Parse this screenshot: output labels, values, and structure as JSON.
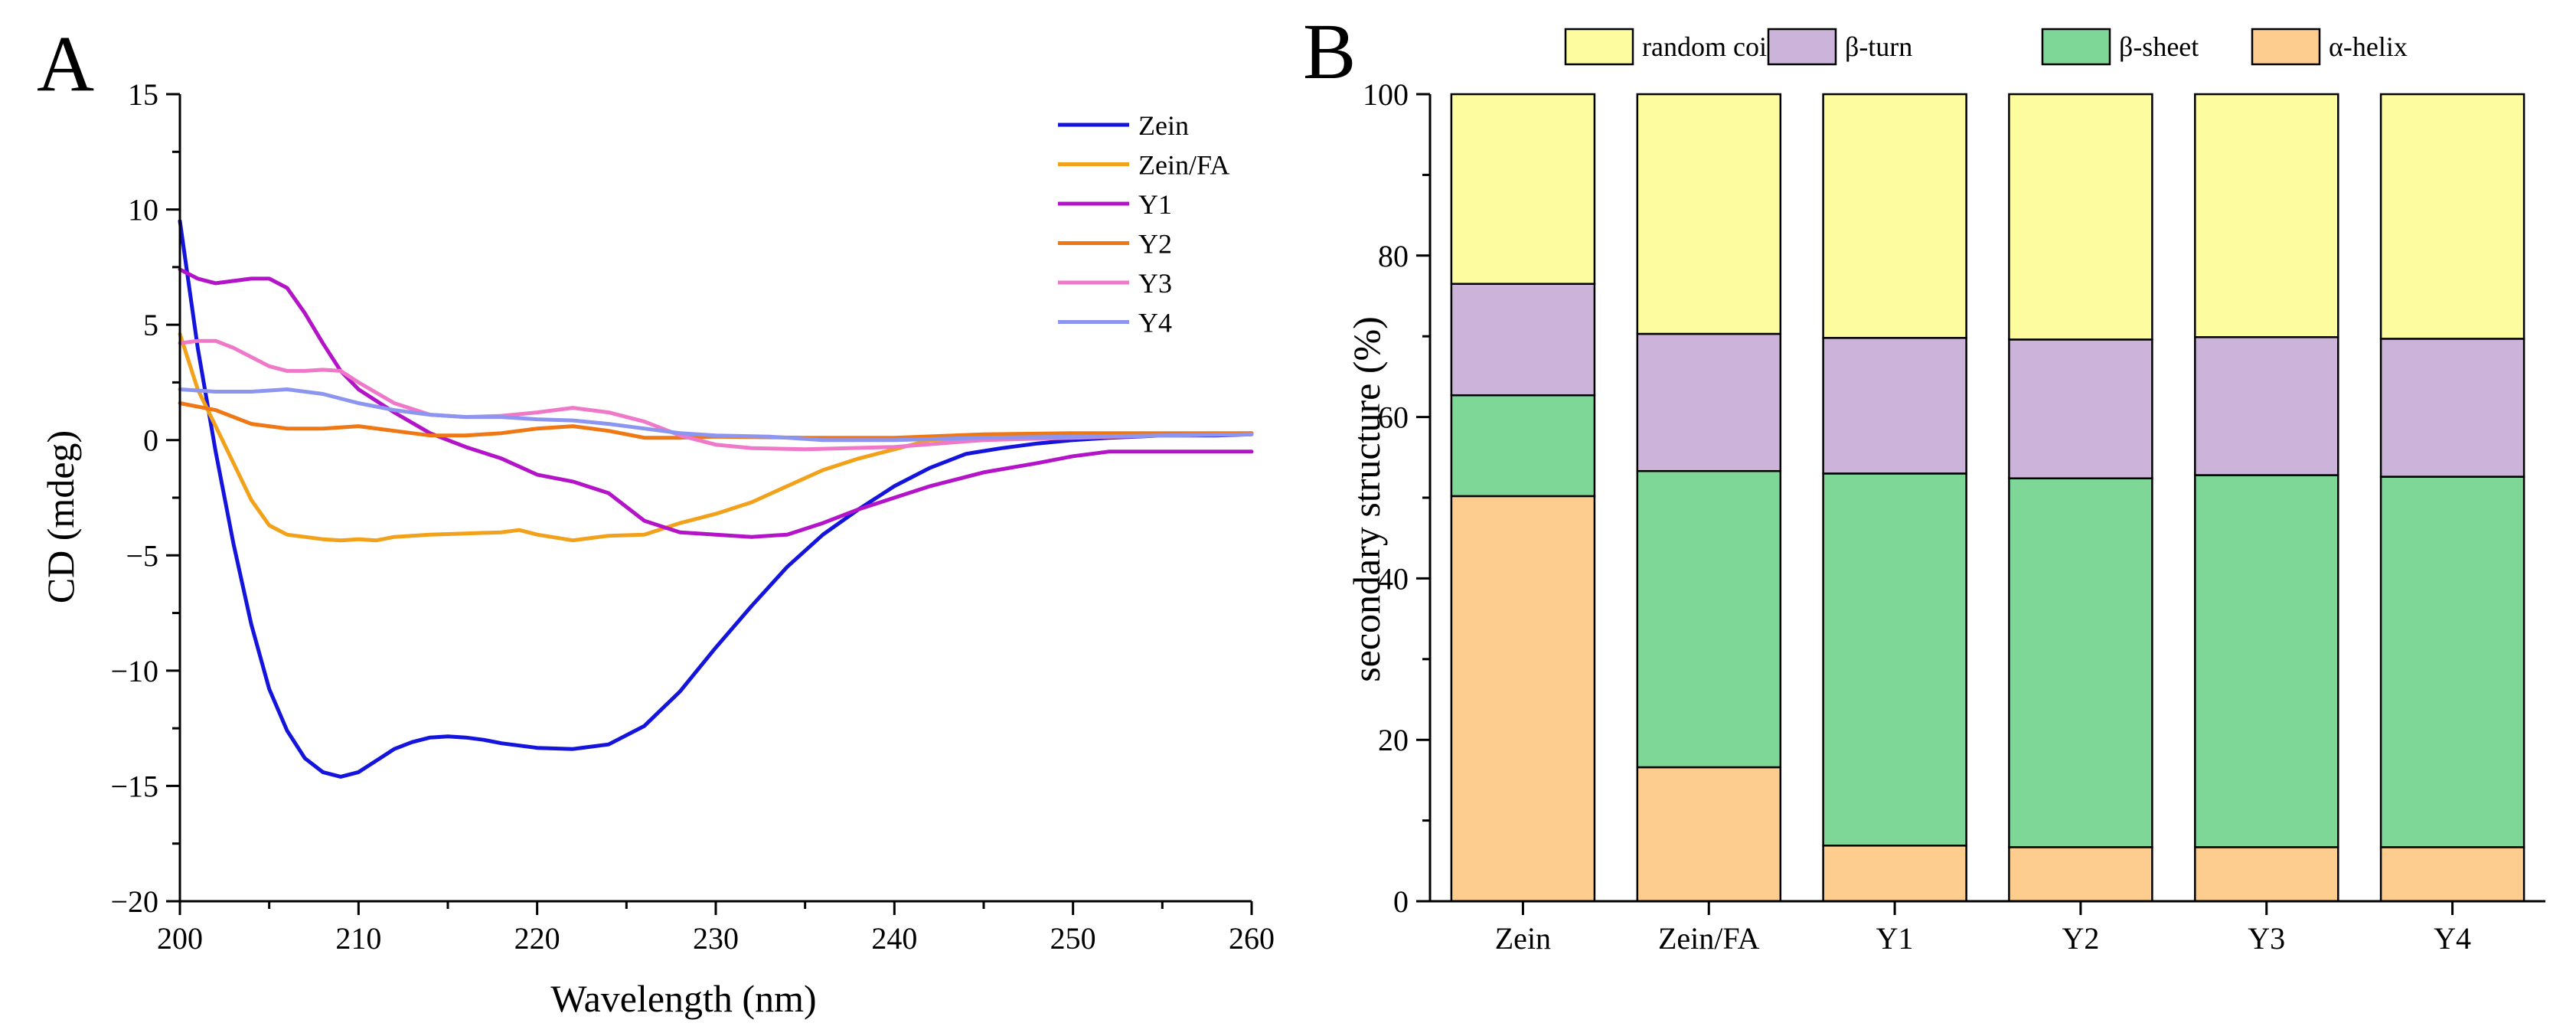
{
  "panels": {
    "a": "A",
    "b": "B"
  },
  "chart_data": [
    {
      "type": "line",
      "panel": "A",
      "title": "",
      "xlabel": "Wavelength (nm)",
      "ylabel": "CD (mdeg)",
      "xlim": [
        200,
        260
      ],
      "ylim": [
        -20,
        15
      ],
      "xticks": [
        200,
        210,
        220,
        230,
        240,
        250,
        260
      ],
      "yticks": [
        -20,
        -15,
        -10,
        -5,
        0,
        5,
        10,
        15
      ],
      "ytick_labels": [
        "−20",
        "−15",
        "−10",
        "−5",
        "0",
        "5",
        "10",
        "15"
      ],
      "grid": false,
      "legend_position": "top-right",
      "series": [
        {
          "name": "Zein",
          "color": "#1414dc",
          "x": [
            200,
            201,
            202,
            203,
            204,
            205,
            206,
            207,
            208,
            209,
            210,
            211,
            212,
            213,
            214,
            215,
            216,
            217,
            218,
            220,
            222,
            224,
            226,
            228,
            230,
            232,
            234,
            236,
            238,
            240,
            242,
            244,
            246,
            248,
            250,
            252,
            255,
            258,
            260
          ],
          "y": [
            9.5,
            4.0,
            -0.5,
            -4.5,
            -8.0,
            -10.8,
            -12.6,
            -13.8,
            -14.4,
            -14.6,
            -14.4,
            -13.9,
            -13.4,
            -13.1,
            -12.9,
            -12.85,
            -12.9,
            -13.0,
            -13.15,
            -13.35,
            -13.4,
            -13.2,
            -12.4,
            -10.9,
            -9.0,
            -7.2,
            -5.5,
            -4.1,
            -3.0,
            -2.0,
            -1.2,
            -0.6,
            -0.35,
            -0.15,
            0.0,
            0.1,
            0.2,
            0.2,
            0.25
          ]
        },
        {
          "name": "Zein/FA",
          "color": "#f2a21a",
          "x": [
            200,
            201,
            202,
            203,
            204,
            205,
            206,
            207,
            208,
            209,
            210,
            211,
            212,
            213,
            214,
            216,
            218,
            219,
            220,
            222,
            224,
            226,
            228,
            230,
            232,
            234,
            236,
            238,
            240,
            242,
            245,
            250,
            255,
            260
          ],
          "y": [
            4.6,
            2.2,
            0.6,
            -1.0,
            -2.6,
            -3.7,
            -4.1,
            -4.2,
            -4.3,
            -4.35,
            -4.3,
            -4.35,
            -4.2,
            -4.15,
            -4.1,
            -4.05,
            -4.0,
            -3.9,
            -4.1,
            -4.35,
            -4.15,
            -4.1,
            -3.6,
            -3.2,
            -2.7,
            -2.0,
            -1.3,
            -0.8,
            -0.4,
            0.0,
            0.1,
            0.2,
            0.25,
            0.3
          ]
        },
        {
          "name": "Y1",
          "color": "#b414c8",
          "x": [
            200,
            201,
            202,
            203,
            204,
            205,
            206,
            207,
            208,
            209,
            210,
            212,
            214,
            216,
            218,
            220,
            222,
            224,
            226,
            228,
            230,
            232,
            234,
            236,
            238,
            240,
            242,
            245,
            248,
            250,
            252,
            255,
            258,
            260
          ],
          "y": [
            7.4,
            7.0,
            6.8,
            6.9,
            7.0,
            7.0,
            6.6,
            5.5,
            4.2,
            3.0,
            2.2,
            1.2,
            0.3,
            -0.3,
            -0.8,
            -1.5,
            -1.8,
            -2.3,
            -3.5,
            -4.0,
            -4.1,
            -4.2,
            -4.1,
            -3.6,
            -3.0,
            -2.5,
            -2.0,
            -1.4,
            -1.0,
            -0.7,
            -0.5,
            -0.5,
            -0.5,
            -0.5
          ]
        },
        {
          "name": "Y2",
          "color": "#f07814",
          "x": [
            200,
            202,
            204,
            206,
            208,
            210,
            212,
            214,
            216,
            218,
            220,
            222,
            224,
            226,
            228,
            230,
            235,
            240,
            245,
            250,
            255,
            260
          ],
          "y": [
            1.6,
            1.3,
            0.7,
            0.5,
            0.5,
            0.6,
            0.4,
            0.2,
            0.2,
            0.3,
            0.5,
            0.6,
            0.4,
            0.1,
            0.1,
            0.15,
            0.1,
            0.1,
            0.25,
            0.3,
            0.3,
            0.3
          ]
        },
        {
          "name": "Y3",
          "color": "#f078c8",
          "x": [
            200,
            201,
            202,
            203,
            204,
            205,
            206,
            207,
            208,
            209,
            210,
            212,
            214,
            216,
            218,
            220,
            222,
            224,
            226,
            228,
            230,
            232,
            235,
            240,
            245,
            250,
            255,
            260
          ],
          "y": [
            4.2,
            4.3,
            4.3,
            4.0,
            3.6,
            3.2,
            3.0,
            3.0,
            3.05,
            3.0,
            2.5,
            1.6,
            1.1,
            1.0,
            1.05,
            1.2,
            1.4,
            1.2,
            0.8,
            0.2,
            -0.2,
            -0.35,
            -0.4,
            -0.3,
            0.0,
            0.1,
            0.2,
            0.25
          ]
        },
        {
          "name": "Y4",
          "color": "#8c96f0",
          "x": [
            200,
            202,
            204,
            206,
            208,
            210,
            212,
            214,
            216,
            218,
            220,
            222,
            224,
            226,
            228,
            230,
            233,
            236,
            240,
            245,
            250,
            255,
            260
          ],
          "y": [
            2.2,
            2.1,
            2.1,
            2.2,
            2.0,
            1.6,
            1.3,
            1.1,
            1.0,
            1.0,
            0.9,
            0.85,
            0.7,
            0.5,
            0.3,
            0.2,
            0.15,
            0.0,
            0.0,
            0.1,
            0.15,
            0.2,
            0.25
          ]
        }
      ]
    },
    {
      "type": "bar",
      "stacked": true,
      "panel": "B",
      "title": "",
      "xlabel": "",
      "ylabel": "secondary structure (%)",
      "ylim": [
        0,
        100
      ],
      "yticks": [
        0,
        20,
        40,
        60,
        80,
        100
      ],
      "grid": false,
      "legend_position": "top",
      "categories": [
        "Zein",
        "Zein/FA",
        "Y1",
        "Y2",
        "Y3",
        "Y4"
      ],
      "series": [
        {
          "name": "α-helix",
          "color": "#fdcd90",
          "values": [
            50.2,
            16.6,
            6.9,
            6.7,
            6.7,
            6.7
          ]
        },
        {
          "name": "β-sheet",
          "color": "#7ed697",
          "values": [
            12.5,
            36.7,
            46.1,
            45.7,
            46.1,
            45.9
          ]
        },
        {
          "name": "β-turn",
          "color": "#cbb3d9",
          "values": [
            13.8,
            17.0,
            16.8,
            17.2,
            17.1,
            17.1
          ]
        },
        {
          "name": "random coils",
          "color": "#fdfc9f",
          "values": [
            23.5,
            29.7,
            30.2,
            30.4,
            30.1,
            30.3
          ]
        }
      ]
    }
  ]
}
